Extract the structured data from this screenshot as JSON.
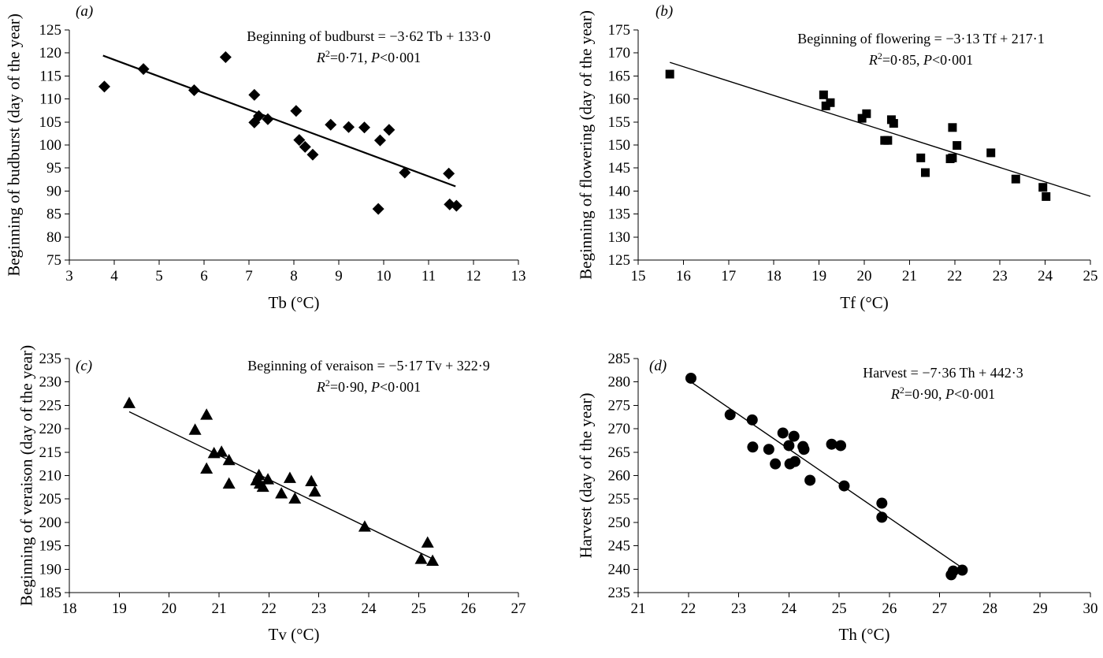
{
  "chart_data": [
    {
      "type": "scatter",
      "panel_label": "(a)",
      "xlabel": "Tb (°C)",
      "ylabel": "Beginning of budburst (day of the year)",
      "xlim": [
        3,
        13
      ],
      "xticks": [
        3,
        4,
        5,
        6,
        7,
        8,
        9,
        10,
        11,
        12,
        13
      ],
      "ylim": [
        75,
        125
      ],
      "yticks": [
        75,
        80,
        85,
        90,
        95,
        100,
        105,
        110,
        115,
        120,
        125
      ],
      "marker": "diamond",
      "equation_line1": "Beginning of budburst = −3·62 Tb + 133·0",
      "r2_label": "R",
      "r2_value": "=0·71, ",
      "p_label": "P",
      "p_value": "<0·001",
      "trendline": {
        "slope": -3.62,
        "intercept": 133.0,
        "x_range": [
          3.75,
          11.6
        ]
      },
      "points": [
        [
          3.78,
          112.7
        ],
        [
          4.65,
          116.5
        ],
        [
          5.78,
          111.9
        ],
        [
          6.48,
          119.1
        ],
        [
          7.12,
          110.9
        ],
        [
          7.12,
          104.9
        ],
        [
          7.22,
          106.3
        ],
        [
          7.42,
          105.6
        ],
        [
          8.05,
          107.4
        ],
        [
          8.12,
          101.1
        ],
        [
          8.25,
          99.6
        ],
        [
          8.42,
          97.9
        ],
        [
          8.82,
          104.4
        ],
        [
          9.22,
          103.9
        ],
        [
          9.57,
          103.8
        ],
        [
          9.92,
          101.0
        ],
        [
          10.12,
          103.3
        ],
        [
          9.88,
          86.1
        ],
        [
          10.47,
          94.0
        ],
        [
          11.45,
          93.8
        ],
        [
          11.47,
          87.1
        ],
        [
          11.62,
          86.8
        ]
      ]
    },
    {
      "type": "scatter",
      "panel_label": "(b)",
      "xlabel": "Tf (°C)",
      "ylabel": "Beginning of flowering (day of the year)",
      "xlim": [
        15,
        25
      ],
      "xticks": [
        15,
        16,
        17,
        18,
        19,
        20,
        21,
        22,
        23,
        24,
        25
      ],
      "ylim": [
        125,
        175
      ],
      "yticks": [
        125,
        130,
        135,
        140,
        145,
        150,
        155,
        160,
        165,
        170,
        175
      ],
      "marker": "square",
      "equation_line1": "Beginning of flowering = −3·13 Tf + 217·1",
      "r2_label": "R",
      "r2_value": "=0·85, ",
      "p_label": "P",
      "p_value": "<0·001",
      "trendline": {
        "slope": -3.13,
        "intercept": 217.1,
        "x_range": [
          15.7,
          25.0
        ]
      },
      "points": [
        [
          15.7,
          165.4
        ],
        [
          19.1,
          160.9
        ],
        [
          19.15,
          158.5
        ],
        [
          19.25,
          159.2
        ],
        [
          19.95,
          155.8
        ],
        [
          20.05,
          156.8
        ],
        [
          20.45,
          151.0
        ],
        [
          20.52,
          151.0
        ],
        [
          20.6,
          155.5
        ],
        [
          20.65,
          154.7
        ],
        [
          21.25,
          147.2
        ],
        [
          21.35,
          144.0
        ],
        [
          21.9,
          147.0
        ],
        [
          21.95,
          147.2
        ],
        [
          21.95,
          153.8
        ],
        [
          22.05,
          149.9
        ],
        [
          22.8,
          148.3
        ],
        [
          23.35,
          142.6
        ],
        [
          23.95,
          140.8
        ],
        [
          24.02,
          138.8
        ]
      ]
    },
    {
      "type": "scatter",
      "panel_label": "(c)",
      "xlabel": "Tv (°C)",
      "ylabel": "Beginning of veraison (day of the year)",
      "xlim": [
        18,
        27
      ],
      "xticks": [
        18,
        19,
        20,
        21,
        22,
        23,
        24,
        25,
        26,
        27
      ],
      "ylim": [
        185,
        235
      ],
      "yticks": [
        185,
        190,
        195,
        200,
        205,
        210,
        215,
        220,
        225,
        230,
        235
      ],
      "marker": "triangle",
      "equation_line1": "Beginning of veraison = −5·17 Tv + 322·9",
      "r2_label": "R",
      "r2_value": "=0·90, ",
      "p_label": "P",
      "p_value": "<0·001",
      "trendline": {
        "slope": -5.17,
        "intercept": 322.9,
        "x_range": [
          19.2,
          25.25
        ]
      },
      "points": [
        [
          19.2,
          225.5
        ],
        [
          20.52,
          219.8
        ],
        [
          20.75,
          223.0
        ],
        [
          20.75,
          211.5
        ],
        [
          20.9,
          214.8
        ],
        [
          21.05,
          215.1
        ],
        [
          21.2,
          213.3
        ],
        [
          21.2,
          208.3
        ],
        [
          21.75,
          209.0
        ],
        [
          21.8,
          210.1
        ],
        [
          21.82,
          208.3
        ],
        [
          21.88,
          207.6
        ],
        [
          21.98,
          209.2
        ],
        [
          22.25,
          206.2
        ],
        [
          22.42,
          209.5
        ],
        [
          22.52,
          205.1
        ],
        [
          22.85,
          208.8
        ],
        [
          22.92,
          206.6
        ],
        [
          23.92,
          199.1
        ],
        [
          25.05,
          192.2
        ],
        [
          25.18,
          195.7
        ],
        [
          25.28,
          191.8
        ]
      ]
    },
    {
      "type": "scatter",
      "panel_label": "(d)",
      "xlabel": "Th (°C)",
      "ylabel": "Harvest (day of the year)",
      "xlim": [
        21,
        30
      ],
      "xticks": [
        21,
        22,
        23,
        24,
        25,
        26,
        27,
        28,
        29,
        30
      ],
      "ylim": [
        235,
        285
      ],
      "yticks": [
        235,
        240,
        245,
        250,
        255,
        260,
        265,
        270,
        275,
        280,
        285
      ],
      "marker": "circle",
      "equation_line1": "Harvest = −7·36 Th + 442·3",
      "r2_label": "R",
      "r2_value": "=0·90, ",
      "p_label": "P",
      "p_value": "<0·001",
      "trendline": {
        "slope": -7.36,
        "intercept": 442.3,
        "x_range": [
          22.05,
          27.45
        ]
      },
      "points": [
        [
          22.05,
          280.8
        ],
        [
          22.83,
          273.0
        ],
        [
          23.27,
          271.9
        ],
        [
          23.28,
          266.1
        ],
        [
          23.6,
          265.6
        ],
        [
          23.73,
          262.5
        ],
        [
          23.88,
          269.1
        ],
        [
          24.0,
          266.4
        ],
        [
          24.02,
          262.5
        ],
        [
          24.1,
          268.4
        ],
        [
          24.12,
          263.0
        ],
        [
          24.28,
          266.2
        ],
        [
          24.3,
          265.6
        ],
        [
          24.42,
          259.0
        ],
        [
          24.85,
          266.7
        ],
        [
          25.03,
          266.4
        ],
        [
          25.1,
          257.8
        ],
        [
          25.85,
          254.1
        ],
        [
          25.85,
          251.1
        ],
        [
          27.23,
          238.8
        ],
        [
          27.27,
          239.6
        ],
        [
          27.45,
          239.8
        ]
      ]
    }
  ]
}
